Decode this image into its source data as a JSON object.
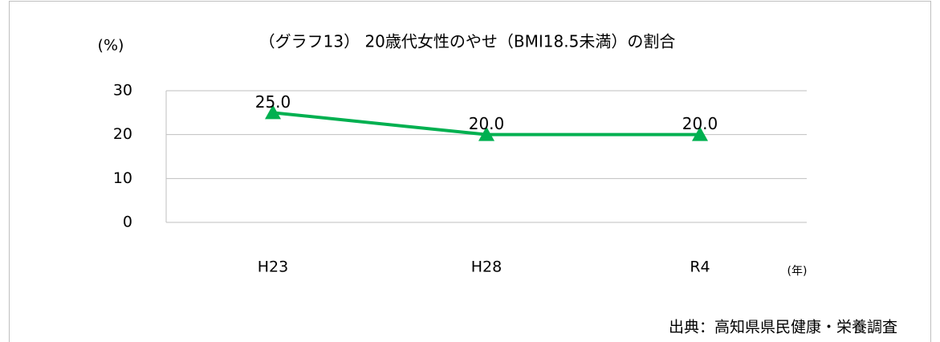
{
  "chart_data": {
    "type": "line",
    "title": "（グラフ13） 20歳代女性のやせ（BMI18.5未満）の割合",
    "y_label": "(%)",
    "x_label": "(年)",
    "source": "出典：高知県県民健康・栄養調査",
    "categories": [
      "H23",
      "H28",
      "R4"
    ],
    "values": [
      25,
      20,
      20
    ],
    "value_labels": [
      "25.0",
      "20.0",
      "20.0"
    ],
    "color": "#00b050",
    "ylim": [
      0,
      30
    ],
    "yticks": [
      0,
      10,
      20,
      30
    ],
    "grid": true
  }
}
